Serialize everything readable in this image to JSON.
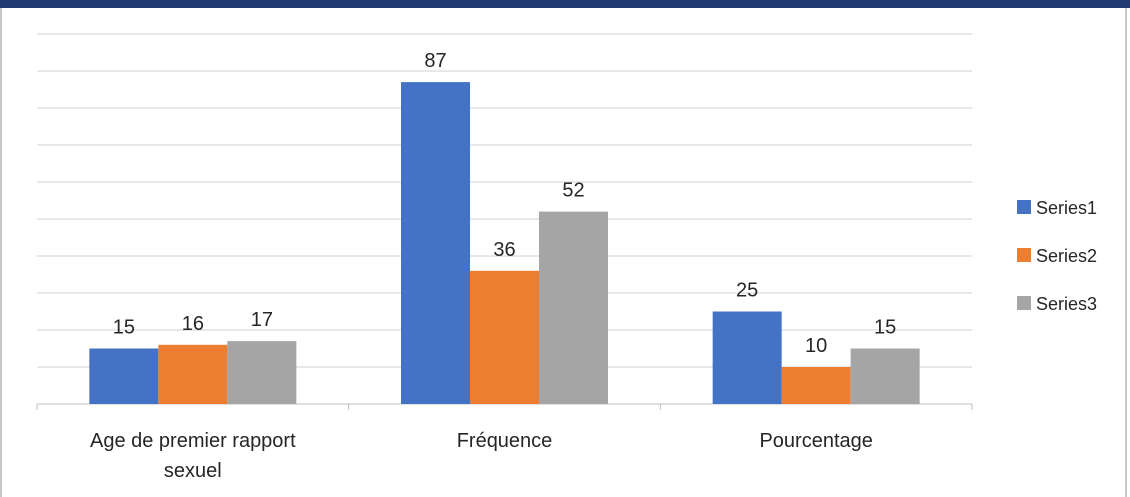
{
  "chart_data": {
    "type": "bar",
    "title": "",
    "xlabel": "",
    "ylabel": "",
    "categories": [
      [
        "Age de premier rapport",
        "sexuel"
      ],
      [
        "Fréquence"
      ],
      [
        "Pourcentage"
      ]
    ],
    "series": [
      {
        "name": "Series1",
        "color": "#4472c4",
        "values": [
          15,
          87,
          25
        ]
      },
      {
        "name": "Series2",
        "color": "#ed7d31",
        "values": [
          16,
          36,
          10
        ]
      },
      {
        "name": "Series3",
        "color": "#a5a5a5",
        "values": [
          17,
          52,
          15
        ]
      }
    ],
    "ylim": [
      0,
      100
    ],
    "gridlines": true,
    "y_tick_labels_visible": false,
    "data_labels": true,
    "legend_position": "right"
  }
}
